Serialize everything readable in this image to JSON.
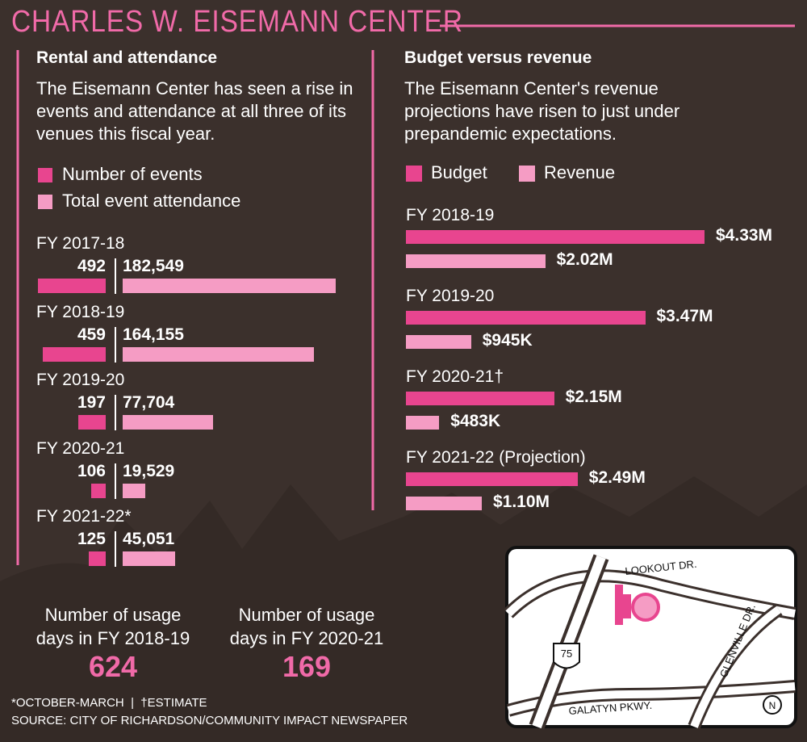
{
  "title": "CHARLES W. EISEMANN CENTER",
  "chart_data": [
    {
      "type": "bar",
      "title": "Rental and attendance",
      "subtitle": "The Eisemann Center has seen a rise in events and attendance at all three of its venues this fiscal year.",
      "categories": [
        "FY 2017-18",
        "FY 2018-19",
        "FY 2019-20",
        "FY 2020-21",
        "FY 2021-22*"
      ],
      "series": [
        {
          "name": "Number of events",
          "color": "#e8458f",
          "values": [
            492,
            459,
            197,
            106,
            125
          ]
        },
        {
          "name": "Total event attendance",
          "color": "#f59cc4",
          "values": [
            182549,
            164155,
            77704,
            19529,
            45051
          ],
          "value_labels": [
            "182,549",
            "164,155",
            "77,704",
            "19,529",
            "45,051"
          ]
        }
      ]
    },
    {
      "type": "bar",
      "title": "Budget versus revenue",
      "subtitle": "The Eisemann Center's revenue projections have risen to just under prepandemic expectations.",
      "categories": [
        "FY 2018-19",
        "FY 2019-20",
        "FY 2020-21†",
        "FY 2021-22 (Projection)"
      ],
      "series": [
        {
          "name": "Budget",
          "color": "#e8458f",
          "values": [
            4330000,
            3470000,
            2150000,
            2490000
          ],
          "value_labels": [
            "$4.33M",
            "$3.47M",
            "$2.15M",
            "$2.49M"
          ]
        },
        {
          "name": "Revenue",
          "color": "#f59cc4",
          "values": [
            2020000,
            945000,
            483000,
            1100000
          ],
          "value_labels": [
            "$2.02M",
            "$945K",
            "$483K",
            "$1.10M"
          ]
        }
      ]
    }
  ],
  "usage_days": [
    {
      "label": "Number of usage days in FY 2018-19",
      "value": 624
    },
    {
      "label": "Number of usage days in FY 2020-21",
      "value": 169
    }
  ],
  "footnotes": [
    "*OCTOBER-MARCH  |  †ESTIMATE",
    "SOURCE: CITY OF RICHARDSON/COMMUNITY IMPACT NEWSPAPER"
  ],
  "map": {
    "roads": [
      "LOOKOUT DR.",
      "GLENVILLE DR.",
      "GALATYN PKWY."
    ],
    "highway": "75",
    "north": "N"
  }
}
